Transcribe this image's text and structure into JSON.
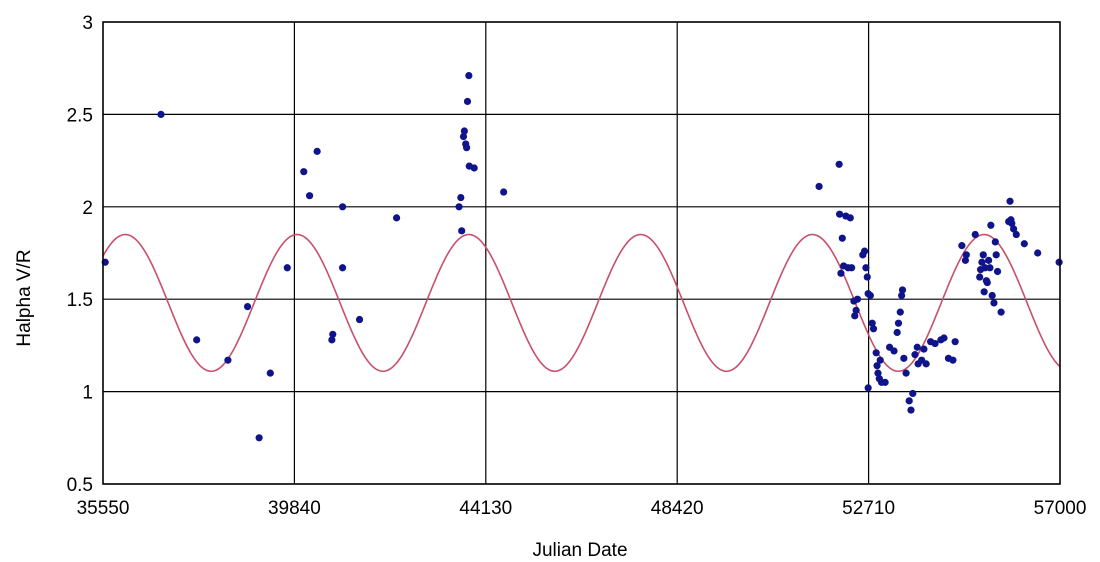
{
  "chart_data": {
    "type": "scatter",
    "title": "",
    "xlabel": "Julian Date",
    "ylabel": "Halpha V/R",
    "xlim": [
      35550,
      57000
    ],
    "ylim": [
      0.5,
      3
    ],
    "x_ticks": [
      "35550",
      "39840",
      "44130",
      "48420",
      "52710",
      "57000"
    ],
    "y_ticks": [
      "0.5",
      "1",
      "1.5",
      "2",
      "2.5",
      "3"
    ],
    "grid": true,
    "legend": "none",
    "colors": {
      "points": "#10148a",
      "fit": "#c8506a",
      "grid": "#000000"
    },
    "series": [
      {
        "type": "scatter",
        "points": [
          [
            35600,
            1.7
          ],
          [
            36850,
            2.5
          ],
          [
            37650,
            1.28
          ],
          [
            38350,
            1.17
          ],
          [
            38790,
            1.46
          ],
          [
            39050,
            0.75
          ],
          [
            39300,
            1.1
          ],
          [
            39680,
            1.67
          ],
          [
            40050,
            2.19
          ],
          [
            40180,
            2.06
          ],
          [
            40350,
            2.3
          ],
          [
            40680,
            1.28
          ],
          [
            40700,
            1.31
          ],
          [
            40920,
            2.0
          ],
          [
            40920,
            1.67
          ],
          [
            41300,
            1.39
          ],
          [
            42130,
            1.94
          ],
          [
            43530,
            2.0
          ],
          [
            43570,
            2.05
          ],
          [
            43590,
            1.87
          ],
          [
            43630,
            2.38
          ],
          [
            43650,
            2.41
          ],
          [
            43680,
            2.34
          ],
          [
            43700,
            2.32
          ],
          [
            43720,
            2.57
          ],
          [
            43750,
            2.71
          ],
          [
            43760,
            2.22
          ],
          [
            43870,
            2.21
          ],
          [
            44530,
            2.08
          ],
          [
            51600,
            2.11
          ],
          [
            52050,
            2.23
          ],
          [
            52060,
            1.96
          ],
          [
            52120,
            1.83
          ],
          [
            52150,
            1.68
          ],
          [
            52200,
            1.95
          ],
          [
            52250,
            1.67
          ],
          [
            52300,
            1.94
          ],
          [
            52090,
            1.64
          ],
          [
            52330,
            1.67
          ],
          [
            52380,
            1.49
          ],
          [
            52400,
            1.41
          ],
          [
            52430,
            1.44
          ],
          [
            52460,
            1.5
          ],
          [
            52580,
            1.74
          ],
          [
            52620,
            1.76
          ],
          [
            52650,
            1.67
          ],
          [
            52680,
            1.62
          ],
          [
            52700,
            1.53
          ],
          [
            52750,
            1.52
          ],
          [
            52790,
            1.37
          ],
          [
            52820,
            1.34
          ],
          [
            52700,
            1.02
          ],
          [
            52880,
            1.21
          ],
          [
            52900,
            1.14
          ],
          [
            52920,
            1.1
          ],
          [
            52950,
            1.07
          ],
          [
            52970,
            1.17
          ],
          [
            53000,
            1.05
          ],
          [
            53080,
            1.05
          ],
          [
            53180,
            1.24
          ],
          [
            53280,
            1.22
          ],
          [
            53350,
            1.32
          ],
          [
            53380,
            1.37
          ],
          [
            53420,
            1.43
          ],
          [
            53450,
            1.52
          ],
          [
            53470,
            1.55
          ],
          [
            53500,
            1.18
          ],
          [
            53550,
            1.1
          ],
          [
            53620,
            0.95
          ],
          [
            53660,
            0.9
          ],
          [
            53700,
            0.99
          ],
          [
            53750,
            1.2
          ],
          [
            53800,
            1.24
          ],
          [
            53820,
            1.15
          ],
          [
            53900,
            1.17
          ],
          [
            53950,
            1.23
          ],
          [
            54000,
            1.15
          ],
          [
            54100,
            1.27
          ],
          [
            54200,
            1.26
          ],
          [
            54330,
            1.28
          ],
          [
            54400,
            1.29
          ],
          [
            54500,
            1.18
          ],
          [
            54600,
            1.17
          ],
          [
            54650,
            1.27
          ],
          [
            54800,
            1.79
          ],
          [
            54880,
            1.71
          ],
          [
            54900,
            1.74
          ],
          [
            55100,
            1.85
          ],
          [
            55200,
            1.62
          ],
          [
            55220,
            1.66
          ],
          [
            55250,
            1.7
          ],
          [
            55280,
            1.74
          ],
          [
            55300,
            1.54
          ],
          [
            55320,
            1.67
          ],
          [
            55350,
            1.6
          ],
          [
            55370,
            1.59
          ],
          [
            55400,
            1.71
          ],
          [
            55430,
            1.67
          ],
          [
            55450,
            1.9
          ],
          [
            55480,
            1.52
          ],
          [
            55520,
            1.48
          ],
          [
            55550,
            1.81
          ],
          [
            55570,
            1.74
          ],
          [
            55600,
            1.65
          ],
          [
            55680,
            1.43
          ],
          [
            55850,
            1.92
          ],
          [
            55880,
            2.03
          ],
          [
            55920,
            1.91
          ],
          [
            55960,
            1.88
          ],
          [
            56020,
            1.85
          ],
          [
            56200,
            1.8
          ],
          [
            56500,
            1.75
          ],
          [
            56980,
            1.7
          ],
          [
            55900,
            1.93
          ]
        ]
      },
      {
        "type": "line",
        "function": "sinusoid",
        "period": 3850,
        "mean": 1.48,
        "amplitude": 0.37,
        "peak_at": 36050,
        "x_range": [
          35550,
          57000
        ]
      }
    ]
  }
}
